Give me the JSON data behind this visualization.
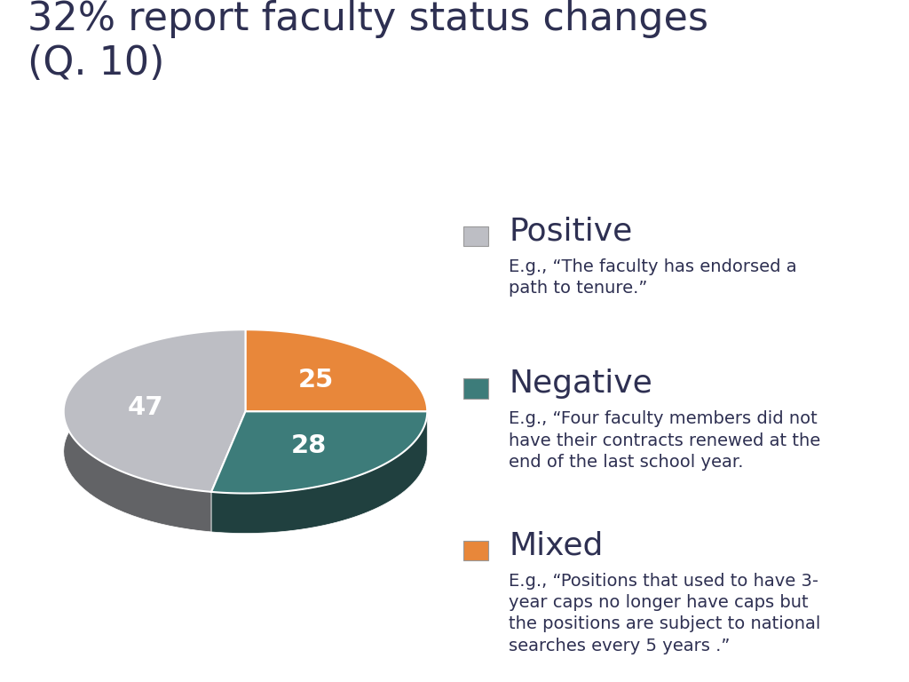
{
  "title": "32% report faculty status changes\n(Q. 10)",
  "title_color": "#2E3052",
  "title_fontsize": 32,
  "background_color": "#FFFFFF",
  "slices": [
    47,
    28,
    25
  ],
  "slice_labels": [
    "47",
    "28",
    "25"
  ],
  "slice_colors": [
    "#BDBEC4",
    "#3D7C7A",
    "#E8873A"
  ],
  "legend_labels": [
    "Positive",
    "Negative",
    "Mixed"
  ],
  "legend_colors": [
    "#BDBEC4",
    "#3D7C7A",
    "#E8873A"
  ],
  "legend_label_fontsize": 26,
  "legend_desc_fontsize": 14,
  "legend_label_color": "#2E3052",
  "legend_desc_color": "#2E3052",
  "descriptions": [
    "E.g., “The faculty has endorsed a\npath to tenure.”",
    "E.g., “Four faculty members did not\nhave their contracts renewed at the\nend of the last school year.",
    "E.g., “Positions that used to have 3-\nyear caps no longer have caps but\nthe positions are subject to national\nsearches every 5 years .”"
  ],
  "startangle": 90,
  "depth": 0.22,
  "yscale": 0.45
}
